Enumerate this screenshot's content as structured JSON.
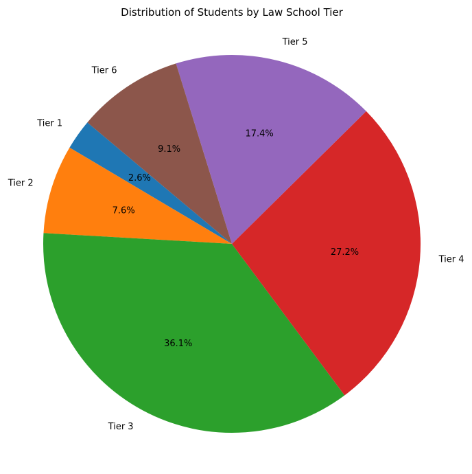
{
  "chart_data": {
    "type": "pie",
    "title": "Distribution of Students by Law School Tier",
    "categories": [
      "Tier 1",
      "Tier 2",
      "Tier 3",
      "Tier 4",
      "Tier 5",
      "Tier 6"
    ],
    "values": [
      2.6,
      7.6,
      36.1,
      27.2,
      17.4,
      9.1
    ],
    "percent_labels": [
      "2.6%",
      "7.6%",
      "36.1%",
      "27.2%",
      "17.4%",
      "9.1%"
    ],
    "colors": [
      "#1f77b4",
      "#ff7f0e",
      "#2ca02c",
      "#d62728",
      "#9467bd",
      "#8c564b"
    ],
    "start_angle_deg": 140,
    "direction": "counterclockwise",
    "legend": "none"
  }
}
